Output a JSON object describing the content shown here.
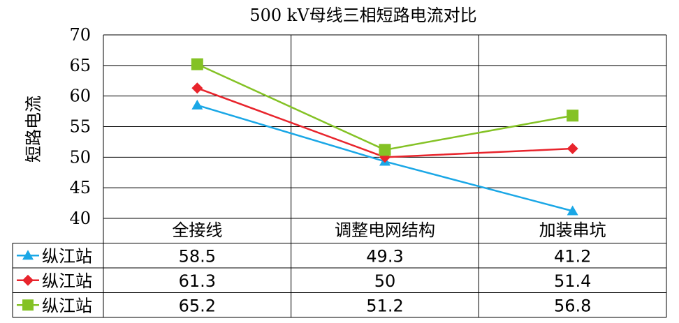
{
  "chart_data": {
    "type": "line",
    "title": "500 kV母线三相短路电流对比",
    "ylabel": "短路电流",
    "xlabel": "",
    "ylim": [
      40,
      70
    ],
    "yticks": [
      "70",
      "65",
      "60",
      "55",
      "50",
      "45",
      "40"
    ],
    "categories": [
      "全接线",
      "调整电网结构",
      "加装串坑"
    ],
    "grid": true,
    "legend": "data-table",
    "series": [
      {
        "name": "纵江站",
        "values": [
          58.5,
          49.3,
          41.2
        ],
        "labels": [
          "58.5",
          "49.3",
          "41.2"
        ],
        "color": "#1aa7e6",
        "marker": "triangle"
      },
      {
        "name": "纵江站",
        "values": [
          61.3,
          50,
          51.4
        ],
        "labels": [
          "61.3",
          "50",
          "51.4"
        ],
        "color": "#e8242c",
        "marker": "diamond"
      },
      {
        "name": "纵江站",
        "values": [
          65.2,
          51.2,
          56.8
        ],
        "labels": [
          "65.2",
          "51.2",
          "56.8"
        ],
        "color": "#84c225",
        "marker": "square"
      }
    ]
  }
}
